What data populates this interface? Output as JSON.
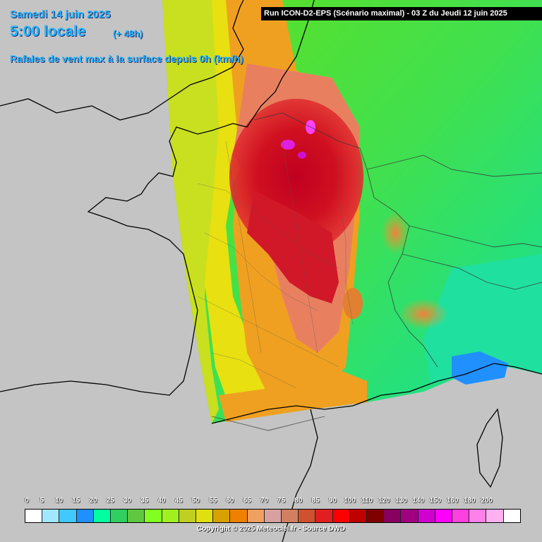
{
  "header": {
    "date": "Samedi 14 juin 2025",
    "local_time": "5:00 locale",
    "lead": "(+ 48h)",
    "description": "Rafales de vent max à la surface depuis 0h (km/h)"
  },
  "run_info": "Run ICON-D2-EPS (Scénario maximal) - 03 Z du Jeudi 12 juin 2025",
  "legend": {
    "unit": "km/h",
    "labels": [
      "0",
      "5",
      "10",
      "15",
      "20",
      "25",
      "30",
      "35",
      "40",
      "45",
      "50",
      "55",
      "60",
      "65",
      "70",
      "75",
      "80",
      "85",
      "90",
      "100",
      "110",
      "120",
      "130",
      "140",
      "150",
      "160",
      "180",
      "200"
    ],
    "colors": [
      "#ffffff",
      "#a0e8ff",
      "#40c8ff",
      "#1e90ff",
      "#00ffa0",
      "#30d060",
      "#60c840",
      "#80ff20",
      "#a0f020",
      "#c0d020",
      "#e0e010",
      "#d8a000",
      "#f08000",
      "#f0a060",
      "#d8a0a0",
      "#d08060",
      "#d05030",
      "#e02020",
      "#ff0000",
      "#c00000",
      "#800000",
      "#880060",
      "#a00080",
      "#d000d0",
      "#ff00ff",
      "#ff40e0",
      "#ff80e8",
      "#ffb0f0",
      "#ffffff"
    ]
  },
  "copyright": "Copyright © 2025 Meteociel.fr - Source DWD"
}
